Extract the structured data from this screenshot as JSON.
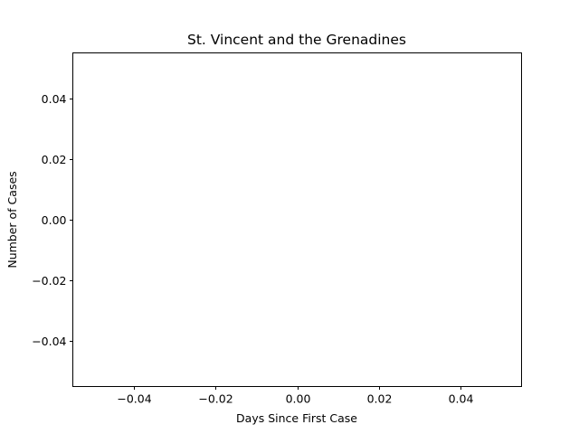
{
  "chart_data": {
    "type": "line",
    "title": "St. Vincent and the Grenadines",
    "xlabel": "Days Since First Case",
    "ylabel": "Number of Cases",
    "xlim": [
      -0.055,
      0.055
    ],
    "ylim": [
      -0.055,
      0.055
    ],
    "xticks": [
      -0.04,
      -0.02,
      0.0,
      0.02,
      0.04
    ],
    "xtick_labels": [
      "−0.04",
      "−0.02",
      "0.00",
      "0.02",
      "0.04"
    ],
    "yticks": [
      -0.04,
      -0.02,
      0.0,
      0.02,
      0.04
    ],
    "ytick_labels": [
      "−0.04",
      "−0.02",
      "0.00",
      "0.02",
      "0.04"
    ],
    "grid": false,
    "series": [
      {
        "x": [],
        "y": []
      }
    ]
  }
}
